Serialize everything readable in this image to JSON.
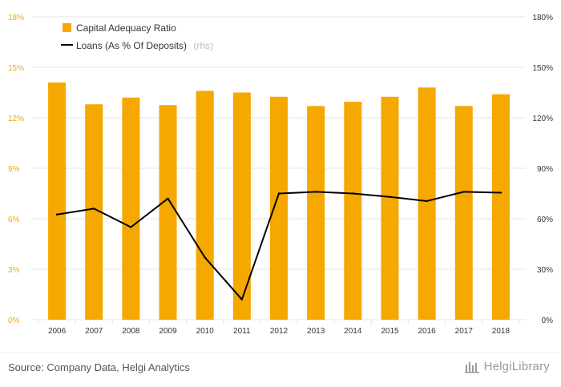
{
  "chart_data": {
    "type": "bar",
    "categories": [
      "2006",
      "2007",
      "2008",
      "2009",
      "2010",
      "2011",
      "2012",
      "2013",
      "2014",
      "2015",
      "2016",
      "2017",
      "2018"
    ],
    "series": [
      {
        "name": "Capital Adequacy Ratio",
        "axis": "left",
        "kind": "bar",
        "color": "#f5a800",
        "values": [
          14.1,
          12.8,
          13.2,
          12.75,
          13.6,
          13.5,
          13.25,
          12.7,
          12.95,
          13.25,
          13.8,
          12.7,
          13.4
        ]
      },
      {
        "name": "Loans (As % Of Deposits)",
        "axis": "right",
        "kind": "line",
        "color": "#000000",
        "values": [
          62.5,
          66,
          55,
          72,
          37,
          12,
          75,
          76,
          75,
          73,
          70.5,
          76,
          75.5
        ]
      }
    ],
    "legend_rhs_suffix": "(rhs)",
    "y_left": {
      "ylim": [
        0,
        18
      ],
      "ticks": [
        "0%",
        "3%",
        "6%",
        "9%",
        "12%",
        "15%",
        "18%"
      ]
    },
    "y_right": {
      "ylim": [
        0,
        180
      ],
      "ticks": [
        "0%",
        "30%",
        "60%",
        "90%",
        "120%",
        "150%",
        "180%"
      ]
    },
    "grid": true,
    "legend_position": "top-left"
  },
  "footer": {
    "source": "Source: Company Data, Helgi Analytics",
    "brand": "HelgiLibrary"
  },
  "colors": {
    "bar": "#f5a800",
    "line": "#000000",
    "grid": "#e6e6e6"
  }
}
